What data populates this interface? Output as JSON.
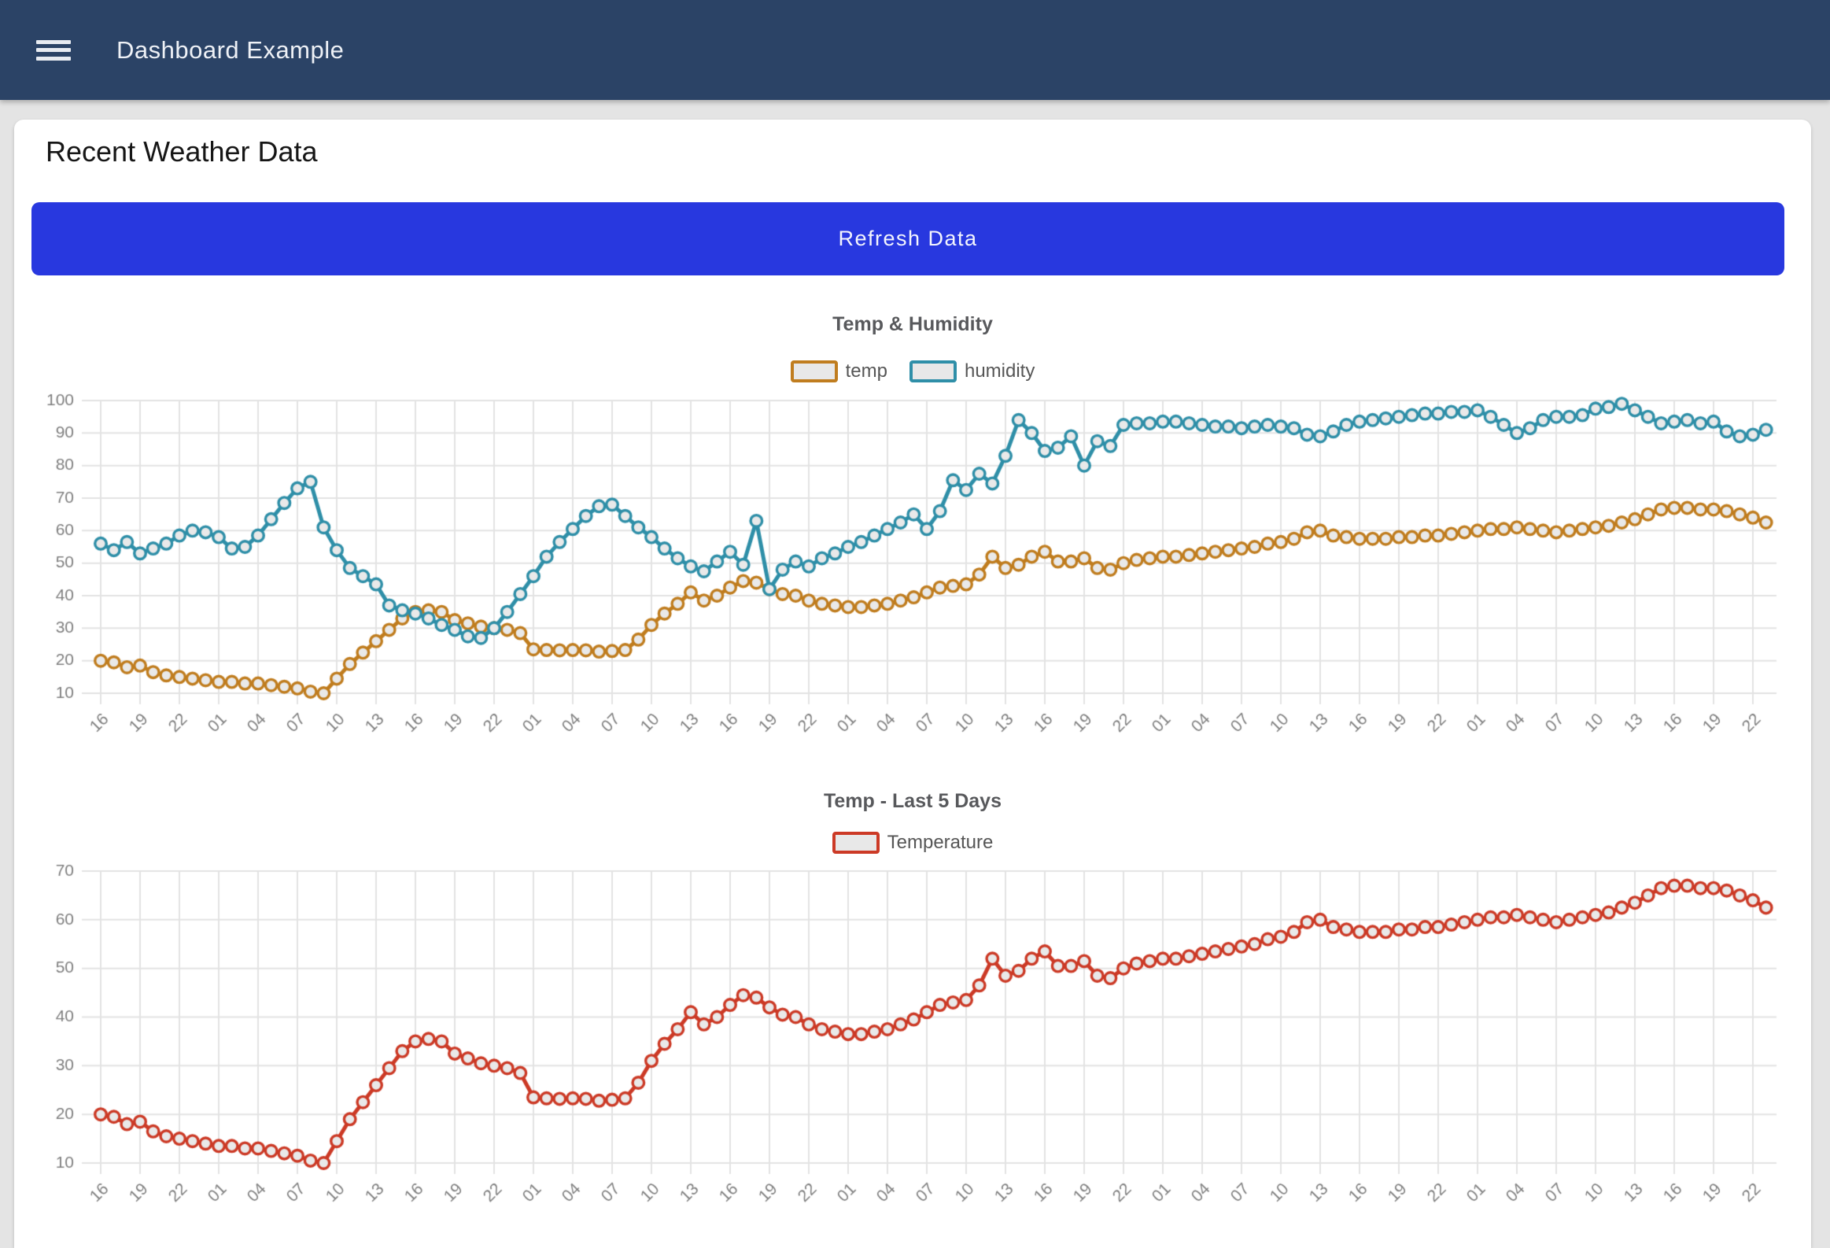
{
  "header": {
    "title": "Dashboard Example"
  },
  "main": {
    "heading": "Recent Weather Data",
    "refresh_label": "Refresh Data"
  },
  "colors": {
    "appbar_bg": "#2b4366",
    "button_bg": "#2838df",
    "card_bg": "#ffffff",
    "page_bg": "#e4e4e4",
    "gridline": "#e3e3e3",
    "axis_label": "#7f7f7f",
    "temp_series": "#c07d1f",
    "humidity_series": "#2f8fa8",
    "temperature_series": "#cc3a26",
    "marker_fill": "#e9e9e9"
  },
  "chart_data": [
    {
      "type": "line",
      "title": "Temp & Humidity",
      "xlabel": "",
      "ylabel": "",
      "ylim": [
        10,
        100
      ],
      "ytick_step": 10,
      "grid": true,
      "legend_position": "top",
      "points_per_label": 3,
      "x_labels": [
        "16",
        "19",
        "22",
        "01",
        "04",
        "07",
        "10",
        "13",
        "16",
        "19",
        "22",
        "01",
        "04",
        "07",
        "10",
        "13",
        "16",
        "19",
        "22",
        "01",
        "04",
        "07",
        "10",
        "13",
        "16",
        "19",
        "22",
        "01",
        "04",
        "07",
        "10",
        "13",
        "16",
        "19",
        "22",
        "01",
        "04",
        "07",
        "10",
        "13",
        "16",
        "19",
        "22"
      ],
      "series": [
        {
          "name": "temp",
          "color": "#c07d1f",
          "values": [
            20,
            19.5,
            18,
            18.5,
            16.5,
            15.5,
            15,
            14.5,
            14,
            13.5,
            13.5,
            13,
            13,
            12.5,
            12,
            11.5,
            10.5,
            10,
            14.5,
            19,
            22.5,
            26,
            29.5,
            33,
            35,
            35.5,
            35,
            32.5,
            31.5,
            30.5,
            30,
            29.5,
            28.5,
            23.5,
            23.3,
            23.2,
            23.3,
            23.2,
            22.8,
            23,
            23.3,
            26.5,
            31,
            34.5,
            37.5,
            41,
            38.5,
            40,
            42.5,
            44.5,
            44,
            42,
            40.5,
            40,
            38.5,
            37.5,
            37,
            36.5,
            36.5,
            37,
            37.5,
            38.5,
            39.5,
            41,
            42.5,
            43,
            43.5,
            46.5,
            52,
            48.5,
            49.5,
            52,
            53.5,
            50.5,
            50.5,
            51.5,
            48.5,
            48,
            50,
            51,
            51.5,
            52,
            52,
            52.5,
            53,
            53.5,
            54,
            54.5,
            55,
            56,
            56.5,
            57.5,
            59.5,
            60,
            58.5,
            58,
            57.5,
            57.5,
            57.5,
            58,
            58,
            58.5,
            58.5,
            59,
            59.5,
            60,
            60.5,
            60.5,
            61,
            60.5,
            60,
            59.5,
            60,
            60.5,
            61,
            61.5,
            62.5,
            63.5,
            65,
            66.5,
            67,
            67,
            66.5,
            66.5,
            66,
            65,
            64,
            62.5
          ]
        },
        {
          "name": "humidity",
          "color": "#2f8fa8",
          "values": [
            56,
            54,
            56.5,
            53,
            54.5,
            56,
            58.5,
            60,
            59.5,
            58,
            54.5,
            55,
            58.5,
            63.5,
            68.5,
            73,
            75,
            61,
            54,
            48.5,
            46,
            43.5,
            37,
            35.5,
            34.5,
            33,
            31,
            29.5,
            27.5,
            27,
            30,
            35,
            40.5,
            46,
            52,
            56.5,
            60.5,
            64.5,
            67.5,
            68,
            64.5,
            61,
            58,
            54.5,
            51.5,
            49,
            47.5,
            50.5,
            53.5,
            49.5,
            63,
            42,
            48,
            50.5,
            49,
            51.5,
            53,
            55,
            56.5,
            58.5,
            60.5,
            62.5,
            65,
            60.5,
            66,
            75.5,
            72.5,
            77.5,
            74.5,
            83,
            94,
            90,
            84.5,
            85.5,
            89,
            80,
            87.5,
            86,
            92.5,
            93,
            93,
            93.5,
            93.5,
            93,
            92.5,
            92,
            92,
            91.5,
            92,
            92.5,
            92,
            91.5,
            89.5,
            89,
            90.5,
            92.5,
            93.5,
            94,
            94.5,
            95,
            95.5,
            96,
            96,
            96.5,
            96.5,
            97,
            95,
            92.5,
            90,
            91.5,
            94,
            95,
            95,
            95.5,
            97.5,
            98,
            99,
            97,
            95,
            93,
            93.5,
            94,
            93,
            93.5,
            90.5,
            89,
            89.5,
            91
          ]
        }
      ]
    },
    {
      "type": "line",
      "title": "Temp - Last 5 Days",
      "xlabel": "",
      "ylabel": "",
      "ylim": [
        10,
        70
      ],
      "ytick_step": 10,
      "grid": true,
      "legend_position": "top",
      "points_per_label": 3,
      "x_labels": [
        "16",
        "19",
        "22",
        "01",
        "04",
        "07",
        "10",
        "13",
        "16",
        "19",
        "22",
        "01",
        "04",
        "07",
        "10",
        "13",
        "16",
        "19",
        "22",
        "01",
        "04",
        "07",
        "10",
        "13",
        "16",
        "19",
        "22",
        "01",
        "04",
        "07",
        "10",
        "13",
        "16",
        "19",
        "22",
        "01",
        "04",
        "07",
        "10",
        "13",
        "16",
        "19",
        "22"
      ],
      "series": [
        {
          "name": "Temperature",
          "color": "#cc3a26",
          "values": [
            20,
            19.5,
            18,
            18.5,
            16.5,
            15.5,
            15,
            14.5,
            14,
            13.5,
            13.5,
            13,
            13,
            12.5,
            12,
            11.5,
            10.5,
            10,
            14.5,
            19,
            22.5,
            26,
            29.5,
            33,
            35,
            35.5,
            35,
            32.5,
            31.5,
            30.5,
            30,
            29.5,
            28.5,
            23.5,
            23.3,
            23.2,
            23.3,
            23.2,
            22.8,
            23,
            23.3,
            26.5,
            31,
            34.5,
            37.5,
            41,
            38.5,
            40,
            42.5,
            44.5,
            44,
            42,
            40.5,
            40,
            38.5,
            37.5,
            37,
            36.5,
            36.5,
            37,
            37.5,
            38.5,
            39.5,
            41,
            42.5,
            43,
            43.5,
            46.5,
            52,
            48.5,
            49.5,
            52,
            53.5,
            50.5,
            50.5,
            51.5,
            48.5,
            48,
            50,
            51,
            51.5,
            52,
            52,
            52.5,
            53,
            53.5,
            54,
            54.5,
            55,
            56,
            56.5,
            57.5,
            59.5,
            60,
            58.5,
            58,
            57.5,
            57.5,
            57.5,
            58,
            58,
            58.5,
            58.5,
            59,
            59.5,
            60,
            60.5,
            60.5,
            61,
            60.5,
            60,
            59.5,
            60,
            60.5,
            61,
            61.5,
            62.5,
            63.5,
            65,
            66.5,
            67,
            67,
            66.5,
            66.5,
            66,
            65,
            64,
            62.5
          ]
        }
      ]
    }
  ]
}
